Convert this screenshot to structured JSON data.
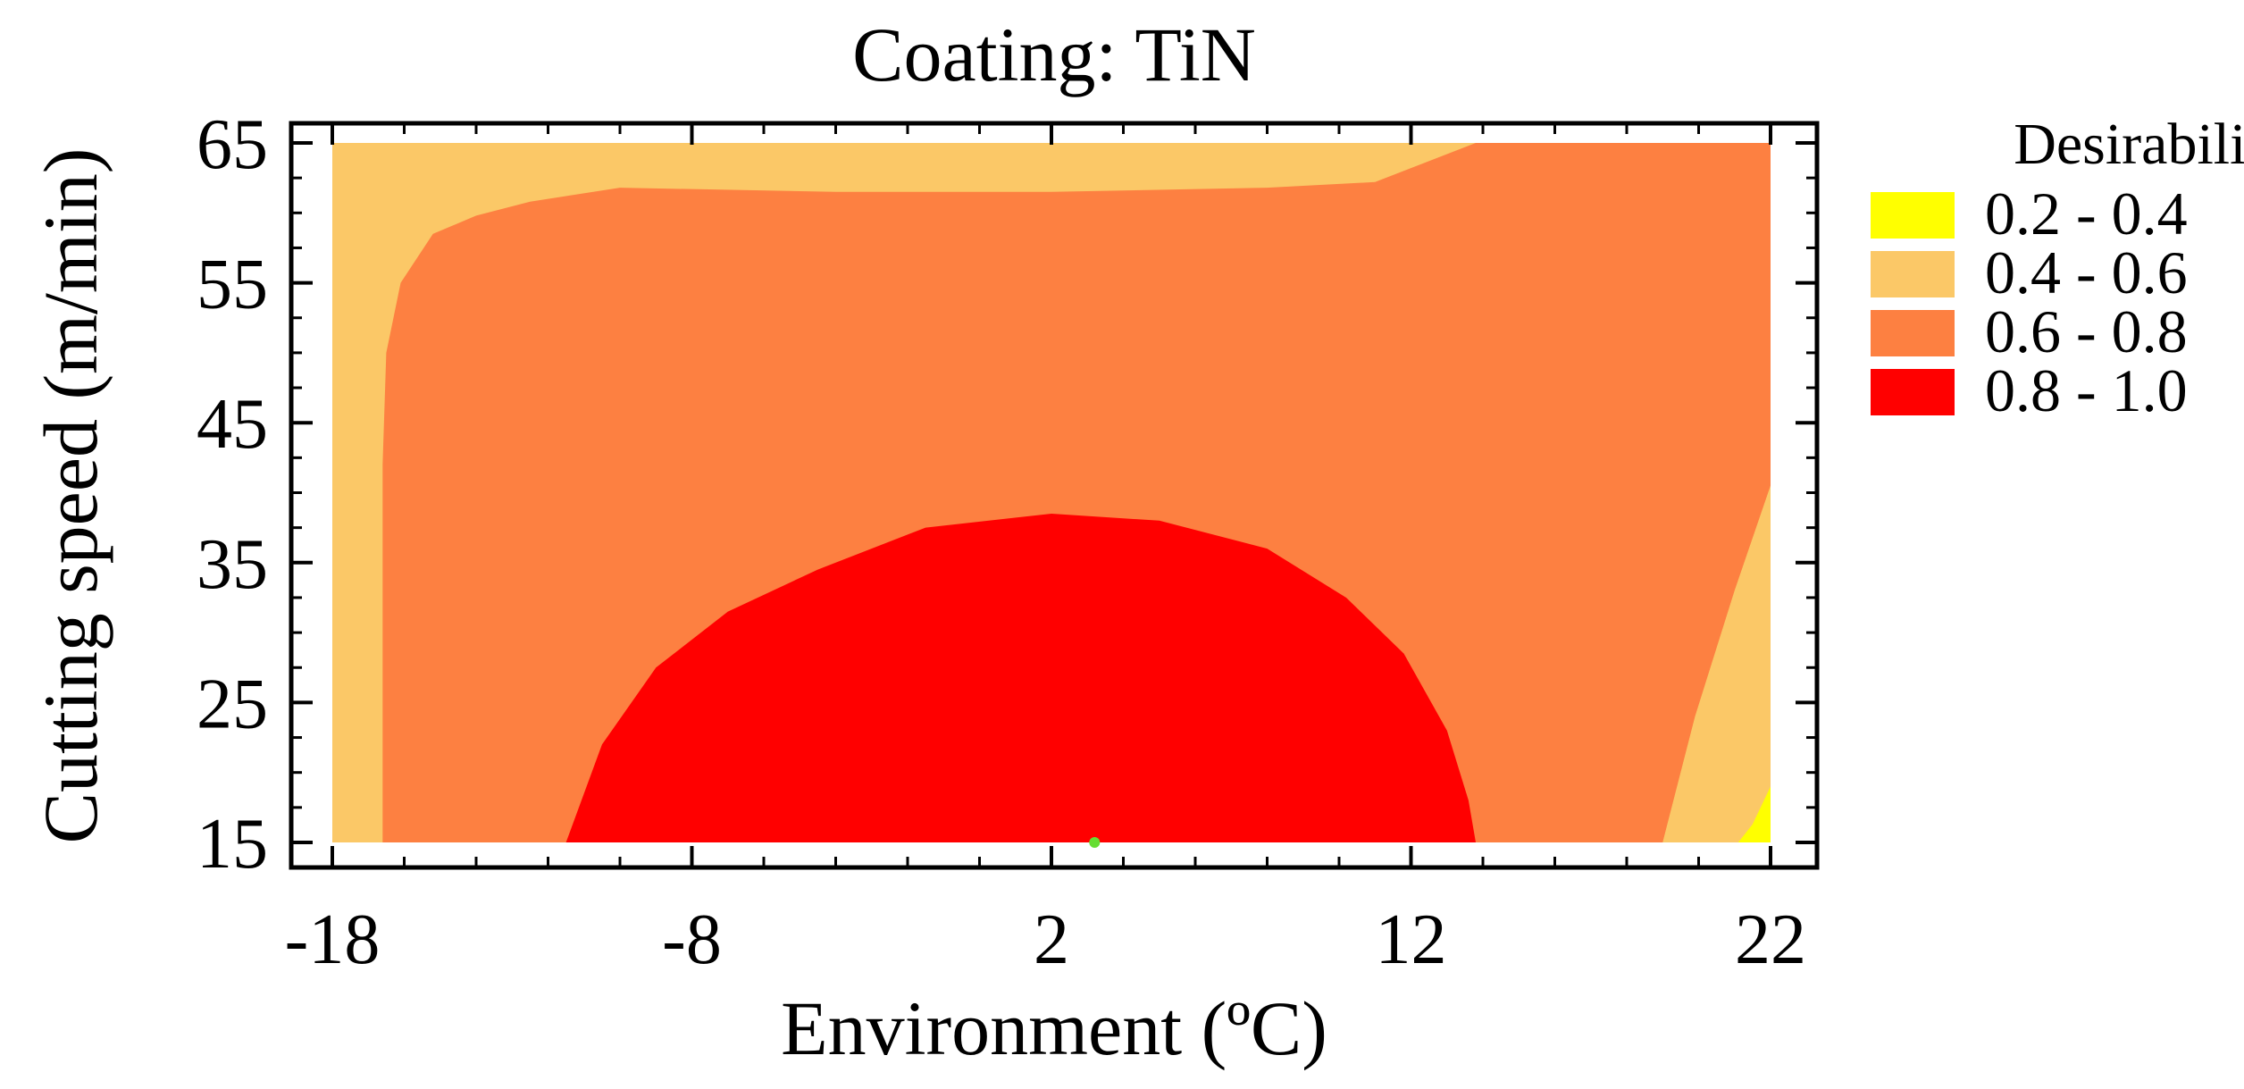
{
  "chart_data": {
    "type": "contour",
    "title": "Coating: TiN",
    "xlabel": "Environment (ºC)",
    "ylabel": "Cutting speed (m/min)",
    "xlim": [
      -18,
      22
    ],
    "ylim": [
      15,
      65
    ],
    "xticks": [
      "-18",
      "-8",
      "2",
      "12",
      "22"
    ],
    "yticks": [
      "15",
      "25",
      "35",
      "45",
      "55",
      "65"
    ],
    "xtick_values": [
      -18,
      -8,
      2,
      12,
      22
    ],
    "ytick_values": [
      15,
      25,
      35,
      45,
      55,
      65
    ],
    "legend": {
      "title": "Desirability",
      "position": "right",
      "items": [
        {
          "label": "0.2 - 0.4",
          "color": "#ffff00"
        },
        {
          "label": "0.4 - 0.6",
          "color": "#fbc867"
        },
        {
          "label": "0.6 - 0.8",
          "color": "#fd8041"
        },
        {
          "label": "0.8 - 1.0",
          "color": "#ff0000"
        }
      ]
    },
    "regions": [
      {
        "name": "0.4-0.6 base",
        "color": "#fbc867",
        "polygon": [
          [
            -18,
            15
          ],
          [
            22,
            15
          ],
          [
            22,
            65
          ],
          [
            -18,
            65
          ]
        ]
      },
      {
        "name": "0.6-0.8 main",
        "color": "#fd8041",
        "polygon": [
          [
            -16.6,
            15
          ],
          [
            -16.6,
            42
          ],
          [
            -16.5,
            50
          ],
          [
            -16.1,
            55
          ],
          [
            -15.2,
            58.5
          ],
          [
            -14,
            59.8
          ],
          [
            -12.5,
            60.8
          ],
          [
            -10,
            61.8
          ],
          [
            -4,
            61.5
          ],
          [
            2,
            61.5
          ],
          [
            8,
            61.8
          ],
          [
            11,
            62.2
          ],
          [
            12.6,
            63.8
          ],
          [
            13.8,
            65
          ],
          [
            22,
            65
          ],
          [
            22,
            40.5
          ],
          [
            21,
            33
          ],
          [
            19.9,
            24
          ],
          [
            19,
            15
          ]
        ]
      },
      {
        "name": "0.4-0.6 bottom-right",
        "color": "#fbc867",
        "polygon": [
          [
            19,
            15
          ],
          [
            19.9,
            24
          ],
          [
            21,
            33
          ],
          [
            22,
            40.5
          ],
          [
            22,
            15
          ]
        ]
      },
      {
        "name": "0.2-0.4 corner",
        "color": "#ffff00",
        "polygon": [
          [
            21.1,
            15
          ],
          [
            21.5,
            16.3
          ],
          [
            22,
            19
          ],
          [
            22,
            15
          ]
        ]
      },
      {
        "name": "0.8-1.0 core",
        "color": "#ff0000",
        "polygon": [
          [
            -11.5,
            15
          ],
          [
            -10.5,
            22
          ],
          [
            -9,
            27.5
          ],
          [
            -7,
            31.5
          ],
          [
            -4.5,
            34.5
          ],
          [
            -1.5,
            37.5
          ],
          [
            2,
            38.5
          ],
          [
            5,
            38
          ],
          [
            8,
            36
          ],
          [
            10.2,
            32.5
          ],
          [
            11.8,
            28.5
          ],
          [
            13,
            23
          ],
          [
            13.6,
            18
          ],
          [
            13.8,
            15
          ]
        ]
      }
    ],
    "marker": {
      "x": 3.2,
      "y": 15,
      "color": "#66dd33"
    }
  }
}
